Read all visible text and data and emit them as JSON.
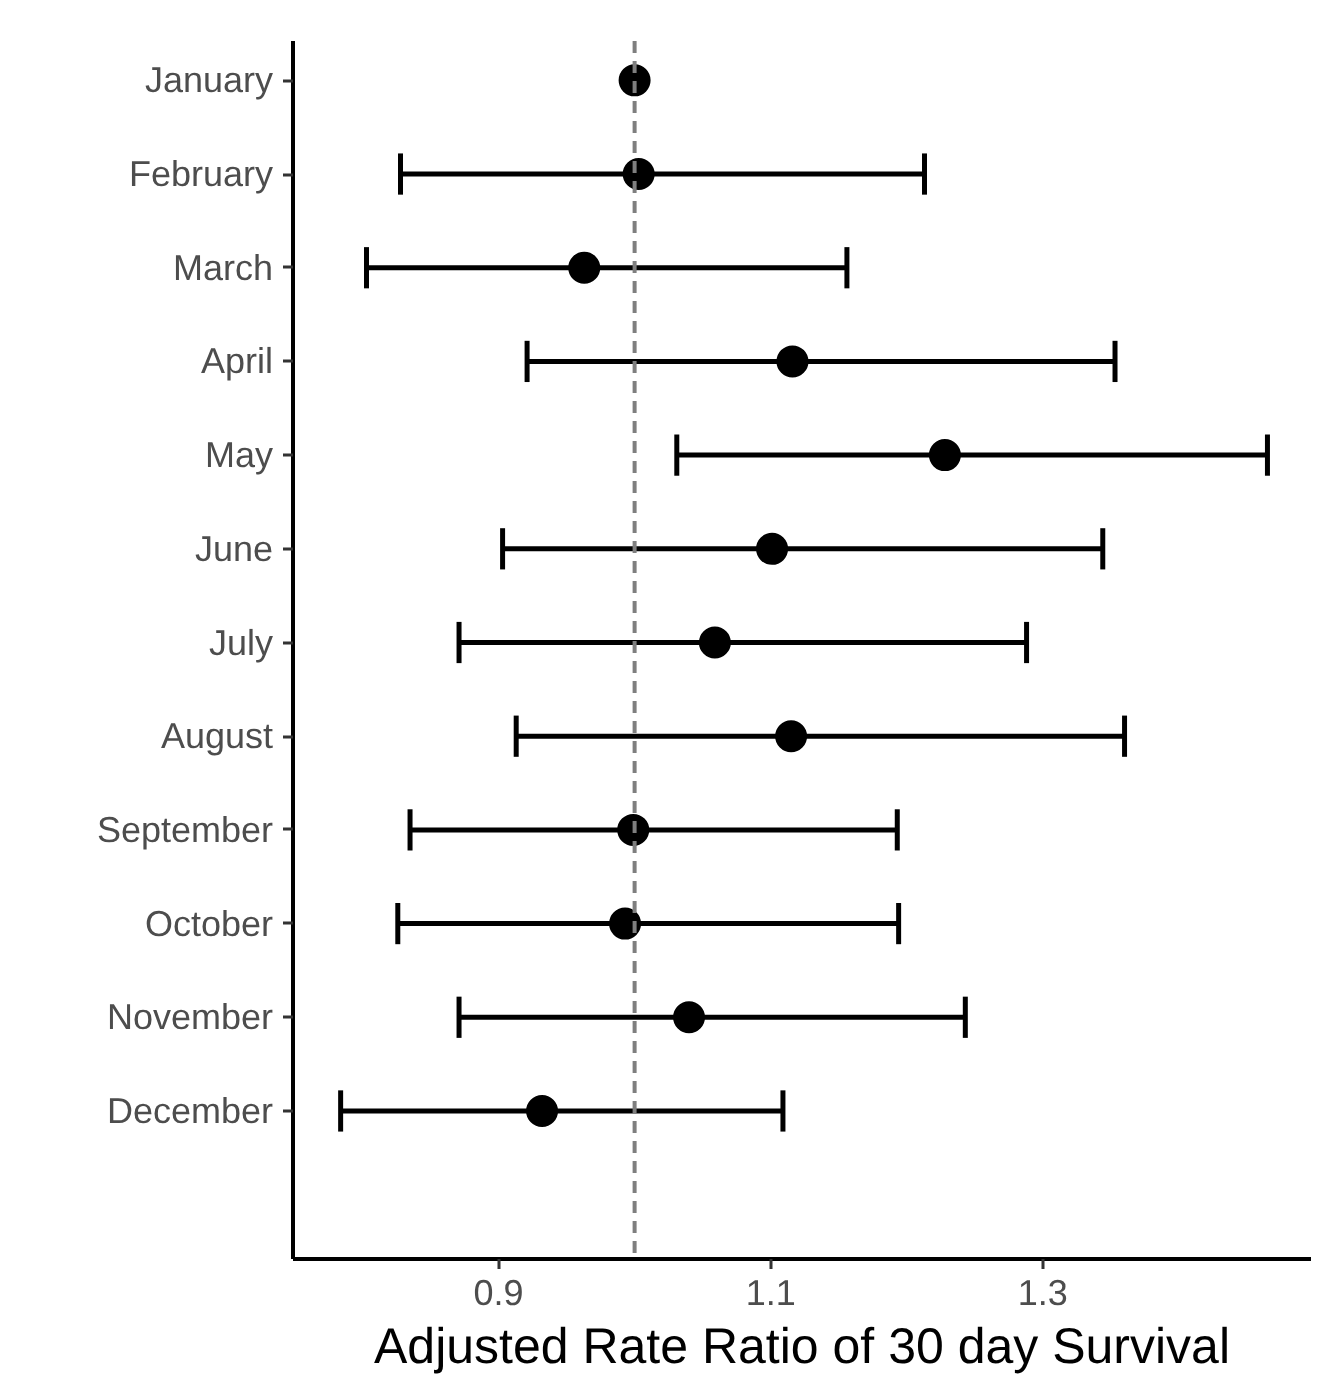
{
  "chart_data": {
    "type": "scatter",
    "orientation": "horizontal",
    "xlabel": "Adjusted Rate Ratio of 30 day Survival",
    "categories": [
      "January",
      "February",
      "March",
      "April",
      "May",
      "June",
      "July",
      "August",
      "September",
      "October",
      "November",
      "December"
    ],
    "values": [
      1.0,
      1.003,
      0.963,
      1.116,
      1.228,
      1.101,
      1.059,
      1.115,
      0.999,
      0.993,
      1.04,
      0.932
    ],
    "errors": [
      null,
      [
        0.828,
        1.213
      ],
      [
        0.803,
        1.156
      ],
      [
        0.921,
        1.353
      ],
      [
        1.031,
        1.465
      ],
      [
        0.903,
        1.344
      ],
      [
        0.871,
        1.288
      ],
      [
        0.913,
        1.36
      ],
      [
        0.835,
        1.193
      ],
      [
        0.826,
        1.194
      ],
      [
        0.871,
        1.243
      ],
      [
        0.784,
        1.109
      ]
    ],
    "color": "#000000",
    "marker": "circle",
    "xlim": [
      0.749,
      1.497
    ],
    "xticks": [
      0.9,
      1.1,
      1.3
    ],
    "ref_lines": [
      {
        "axis": "x",
        "value": 1.0,
        "color": "#7f7f7f",
        "line_style": "dashed"
      }
    ]
  }
}
